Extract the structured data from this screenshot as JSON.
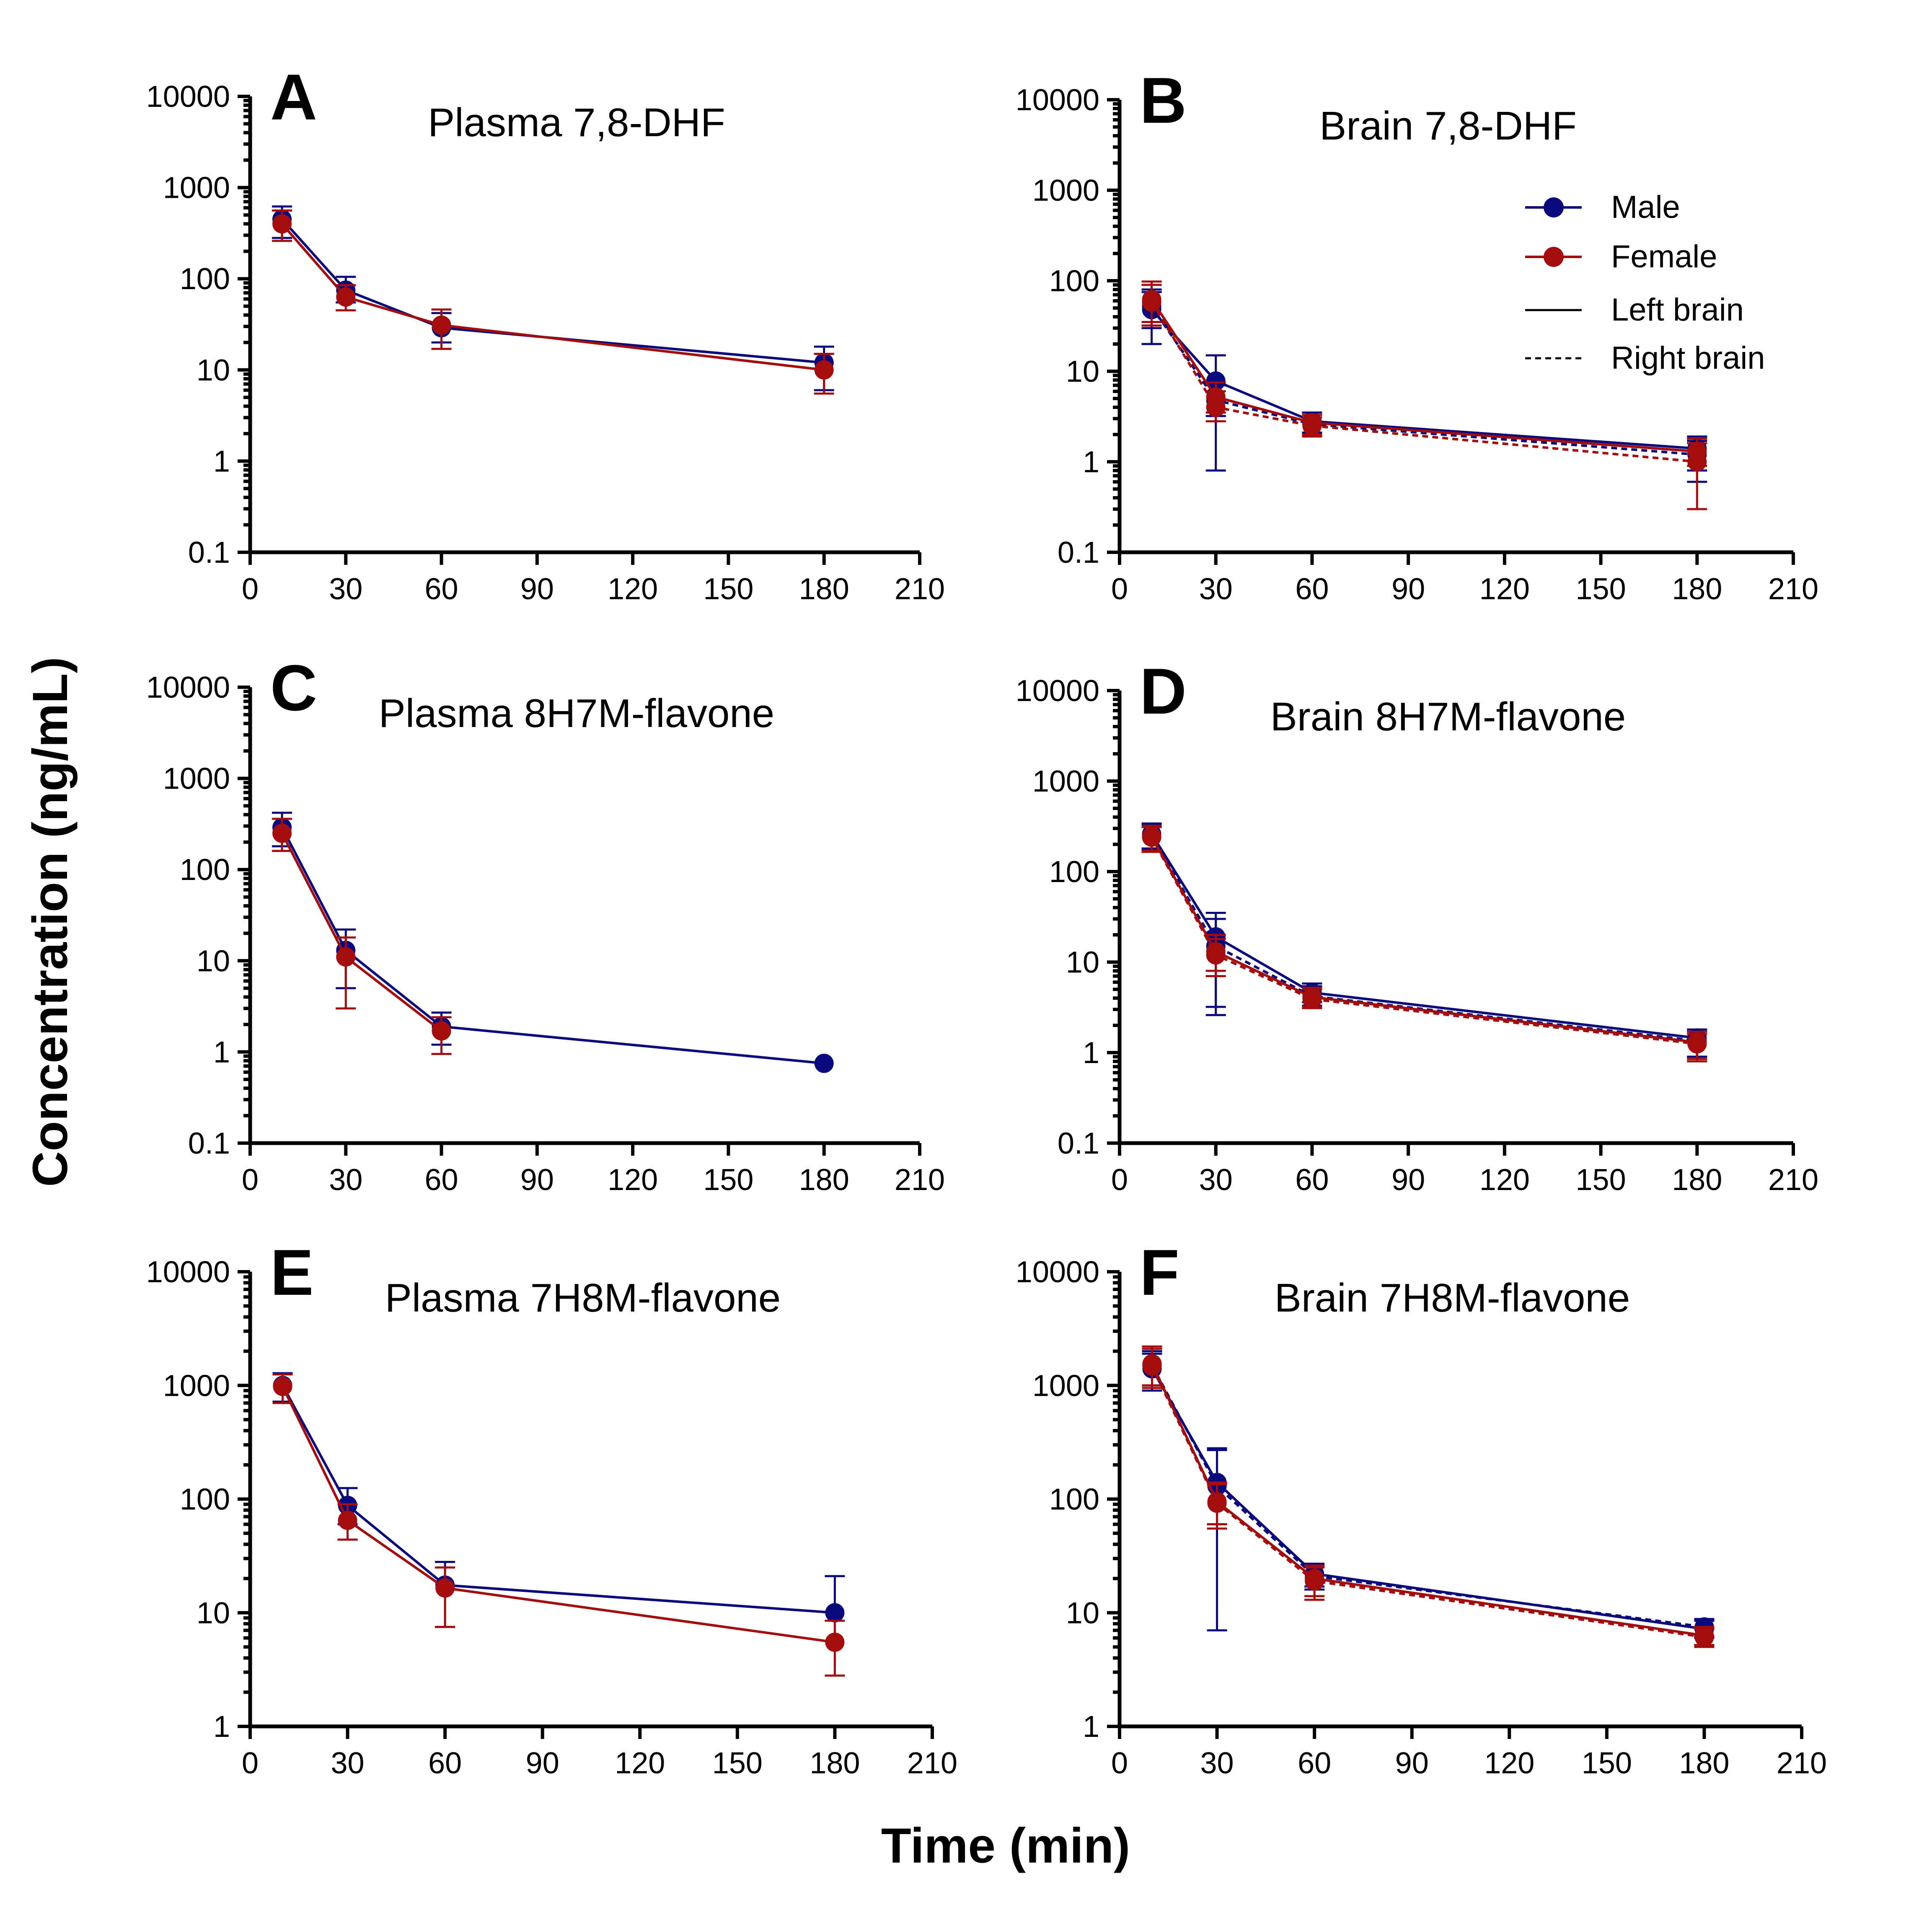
{
  "figure": {
    "ylabel": "Concentration (ng/mL)",
    "xlabel": "Time (min)"
  },
  "legend": {
    "male": "Male",
    "female": "Female",
    "left": "Left brain",
    "right": "Right brain"
  },
  "colors": {
    "male": "#0a0a7c",
    "female": "#a30d0d"
  },
  "chart_data": [
    {
      "panel": "A",
      "type": "line",
      "title": "Plasma 7,8-DHF",
      "xlim": [
        0,
        210
      ],
      "xticks": [
        0,
        30,
        60,
        90,
        120,
        150,
        180,
        210
      ],
      "yscale": "log",
      "ylim": [
        0.1,
        10000
      ],
      "yticks": [
        "0.1",
        "1",
        "10",
        "100",
        "1000",
        "10000"
      ],
      "series": [
        {
          "name": "Male",
          "style": "solid",
          "x": [
            10,
            30,
            60,
            180
          ],
          "y": [
            450,
            75,
            29,
            12
          ],
          "err_lo": [
            280,
            55,
            20,
            6
          ],
          "err_hi": [
            620,
            105,
            42,
            18
          ]
        },
        {
          "name": "Female",
          "style": "solid",
          "x": [
            10,
            30,
            60,
            180
          ],
          "y": [
            400,
            63,
            31,
            10
          ],
          "err_lo": [
            260,
            45,
            17,
            5.5
          ],
          "err_hi": [
            560,
            85,
            46,
            15
          ]
        }
      ]
    },
    {
      "panel": "B",
      "type": "line",
      "title": "Brain 7,8-DHF",
      "xlim": [
        0,
        210
      ],
      "xticks": [
        0,
        30,
        60,
        90,
        120,
        150,
        180,
        210
      ],
      "yscale": "log",
      "ylim": [
        0.1,
        10000
      ],
      "yticks": [
        "0.1",
        "1",
        "10",
        "100",
        "1000",
        "10000"
      ],
      "series": [
        {
          "name": "Male",
          "style": "solid",
          "x": [
            10,
            30,
            60,
            180
          ],
          "y": [
            48,
            7.8,
            2.8,
            1.4
          ],
          "err_lo": [
            20,
            0.8,
            2.1,
            0.6
          ],
          "err_hi": [
            75,
            15,
            3.5,
            1.9
          ]
        },
        {
          "name": "Male",
          "style": "dashed",
          "x": [
            10,
            30,
            60,
            180
          ],
          "y": [
            52,
            4.8,
            2.6,
            1.2
          ],
          "err_lo": [
            30,
            3.2,
            2.0,
            0.8
          ],
          "err_hi": [
            80,
            7,
            3.3,
            1.7
          ]
        },
        {
          "name": "Female",
          "style": "solid",
          "x": [
            10,
            30,
            60,
            180
          ],
          "y": [
            62,
            5.2,
            2.7,
            1.3
          ],
          "err_lo": [
            35,
            3.5,
            2.0,
            0.9
          ],
          "err_hi": [
            98,
            7.5,
            3.3,
            1.8
          ]
        },
        {
          "name": "Female",
          "style": "dashed",
          "x": [
            10,
            30,
            60,
            180
          ],
          "y": [
            58,
            4.0,
            2.5,
            1.0
          ],
          "err_lo": [
            32,
            2.8,
            1.9,
            0.3
          ],
          "err_hi": [
            90,
            6,
            3.1,
            1.6
          ]
        }
      ]
    },
    {
      "panel": "C",
      "type": "line",
      "title": "Plasma 8H7M-flavone",
      "xlim": [
        0,
        210
      ],
      "xticks": [
        0,
        30,
        60,
        90,
        120,
        150,
        180,
        210
      ],
      "yscale": "log",
      "ylim": [
        0.1,
        10000
      ],
      "yticks": [
        "0.1",
        "1",
        "10",
        "100",
        "1000",
        "10000"
      ],
      "series": [
        {
          "name": "Male",
          "style": "solid",
          "x": [
            10,
            30,
            60,
            180
          ],
          "y": [
            290,
            13,
            1.9,
            0.75
          ],
          "err_lo": [
            180,
            5,
            1.2,
            null
          ],
          "err_hi": [
            420,
            22,
            2.7,
            null
          ]
        },
        {
          "name": "Female",
          "style": "solid",
          "x": [
            10,
            30,
            60
          ],
          "y": [
            250,
            11,
            1.7
          ],
          "err_lo": [
            160,
            3,
            0.95
          ],
          "err_hi": [
            360,
            18,
            2.4
          ]
        }
      ]
    },
    {
      "panel": "D",
      "type": "line",
      "title": "Brain 8H7M-flavone",
      "xlim": [
        0,
        210
      ],
      "xticks": [
        0,
        30,
        60,
        90,
        120,
        150,
        180,
        210
      ],
      "yscale": "log",
      "ylim": [
        0.1,
        10000
      ],
      "yticks": [
        "0.1",
        "1",
        "10",
        "100",
        "1000",
        "10000"
      ],
      "series": [
        {
          "name": "Male",
          "style": "solid",
          "x": [
            10,
            30,
            60,
            180
          ],
          "y": [
            260,
            19,
            4.6,
            1.45
          ],
          "err_lo": [
            180,
            2.6,
            3.6,
            0.9
          ],
          "err_hi": [
            340,
            35,
            5.8,
            1.8
          ]
        },
        {
          "name": "Male",
          "style": "dashed",
          "x": [
            10,
            30,
            60,
            180
          ],
          "y": [
            250,
            15,
            4.2,
            1.35
          ],
          "err_lo": [
            175,
            3.2,
            3.3,
            0.9
          ],
          "err_hi": [
            330,
            30,
            5.4,
            1.7
          ]
        },
        {
          "name": "Female",
          "style": "solid",
          "x": [
            10,
            30,
            60,
            180
          ],
          "y": [
            245,
            13,
            4.1,
            1.3
          ],
          "err_lo": [
            170,
            8,
            3.2,
            0.85
          ],
          "err_hi": [
            320,
            20,
            5.2,
            1.7
          ]
        },
        {
          "name": "Female",
          "style": "dashed",
          "x": [
            10,
            30,
            60,
            180
          ],
          "y": [
            240,
            12,
            3.9,
            1.25
          ],
          "err_lo": [
            165,
            7,
            3.1,
            0.8
          ],
          "err_hi": [
            310,
            18,
            5.0,
            1.6
          ]
        }
      ]
    },
    {
      "panel": "E",
      "type": "line",
      "title": "Plasma 7H8M-flavone",
      "xlim": [
        0,
        210
      ],
      "xticks": [
        0,
        30,
        60,
        90,
        120,
        150,
        180,
        210
      ],
      "yscale": "log",
      "ylim": [
        1,
        10000
      ],
      "yticks": [
        "1",
        "10",
        "100",
        "1000",
        "10000"
      ],
      "series": [
        {
          "name": "Male",
          "style": "solid",
          "x": [
            10,
            30,
            60,
            180
          ],
          "y": [
            1000,
            88,
            17.5,
            10
          ],
          "err_lo": [
            720,
            60,
            7.5,
            null
          ],
          "err_hi": [
            1280,
            125,
            28,
            21
          ]
        },
        {
          "name": "Female",
          "style": "solid",
          "x": [
            10,
            30,
            60,
            180
          ],
          "y": [
            980,
            65,
            16.5,
            5.5
          ],
          "err_lo": [
            700,
            44,
            7.5,
            2.8
          ],
          "err_hi": [
            1250,
            90,
            25,
            8.5
          ]
        }
      ]
    },
    {
      "panel": "F",
      "type": "line",
      "title": "Brain 7H8M-flavone",
      "xlim": [
        0,
        210
      ],
      "xticks": [
        0,
        30,
        60,
        90,
        120,
        150,
        180,
        210
      ],
      "yscale": "log",
      "ylim": [
        1,
        10000
      ],
      "yticks": [
        "1",
        "10",
        "100",
        "1000",
        "10000"
      ],
      "series": [
        {
          "name": "Male",
          "style": "solid",
          "x": [
            10,
            30,
            60,
            180
          ],
          "y": [
            1400,
            140,
            22,
            7.2
          ],
          "err_lo": [
            900,
            7,
            17,
            6
          ],
          "err_hi": [
            1900,
            280,
            27,
            8.5
          ]
        },
        {
          "name": "Male",
          "style": "dashed",
          "x": [
            10,
            30,
            60,
            180
          ],
          "y": [
            1500,
            130,
            21,
            7.5
          ],
          "err_lo": [
            1000,
            60,
            16,
            6.2
          ],
          "err_hi": [
            2000,
            270,
            26,
            8.8
          ]
        },
        {
          "name": "Female",
          "style": "solid",
          "x": [
            10,
            30,
            60,
            180
          ],
          "y": [
            1550,
            95,
            20,
            6.3
          ],
          "err_lo": [
            1000,
            60,
            14,
            5.2
          ],
          "err_hi": [
            2200,
            140,
            26,
            7.5
          ]
        },
        {
          "name": "Female",
          "style": "dashed",
          "x": [
            10,
            30,
            60,
            180
          ],
          "y": [
            1480,
            92,
            19,
            6.1
          ],
          "err_lo": [
            950,
            55,
            13,
            5.0
          ],
          "err_hi": [
            2100,
            135,
            25,
            7.2
          ]
        }
      ]
    }
  ]
}
